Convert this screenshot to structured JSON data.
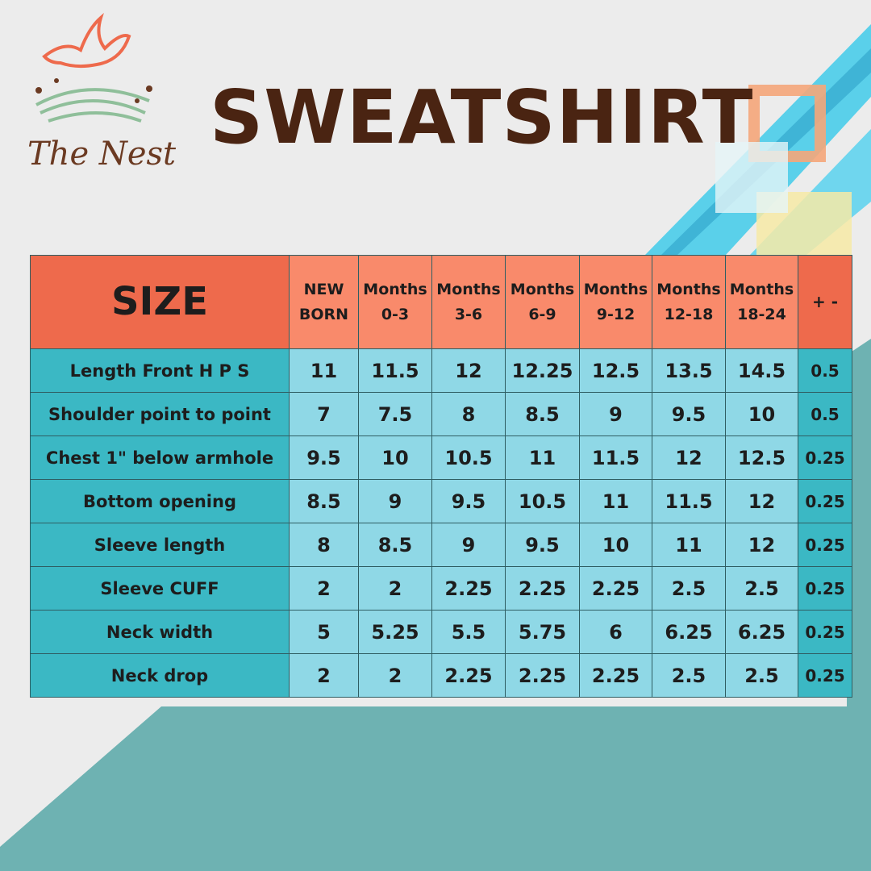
{
  "brand": "The Nest",
  "title": "SWEATSHIRT",
  "table": {
    "corner": "SIZE",
    "sizes": [
      [
        "NEW",
        "BORN"
      ],
      [
        "Months",
        "0-3"
      ],
      [
        "Months",
        "3-6"
      ],
      [
        "Months",
        "6-9"
      ],
      [
        "Months",
        "9-12"
      ],
      [
        "Months",
        "12-18"
      ],
      [
        "Months",
        "18-24"
      ]
    ],
    "tolerance_header": "+ -",
    "rows": [
      {
        "label": "Length Front H P S",
        "values": [
          "11",
          "11.5",
          "12",
          "12.25",
          "12.5",
          "13.5",
          "14.5"
        ],
        "tolerance": "0.5"
      },
      {
        "label": "Shoulder point to point",
        "values": [
          "7",
          "7.5",
          "8",
          "8.5",
          "9",
          "9.5",
          "10"
        ],
        "tolerance": "0.5"
      },
      {
        "label": "Chest 1\" below armhole",
        "values": [
          "9.5",
          "10",
          "10.5",
          "11",
          "11.5",
          "12",
          "12.5"
        ],
        "tolerance": "0.25"
      },
      {
        "label": "Bottom opening",
        "values": [
          "8.5",
          "9",
          "9.5",
          "10.5",
          "11",
          "11.5",
          "12"
        ],
        "tolerance": "0.25"
      },
      {
        "label": "Sleeve length",
        "values": [
          "8",
          "8.5",
          "9",
          "9.5",
          "10",
          "11",
          "12"
        ],
        "tolerance": "0.25"
      },
      {
        "label": "Sleeve CUFF",
        "values": [
          "2",
          "2",
          "2.25",
          "2.25",
          "2.25",
          "2.5",
          "2.5"
        ],
        "tolerance": "0.25"
      },
      {
        "label": "Neck width",
        "values": [
          "5",
          "5.25",
          "5.5",
          "5.75",
          "6",
          "6.25",
          "6.25"
        ],
        "tolerance": "0.25"
      },
      {
        "label": "Neck drop",
        "values": [
          "2",
          "2",
          "2.25",
          "2.25",
          "2.25",
          "2.5",
          "2.5"
        ],
        "tolerance": "0.25"
      }
    ]
  }
}
